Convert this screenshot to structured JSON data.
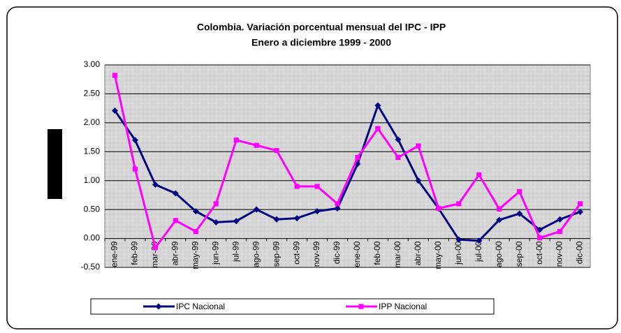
{
  "chart_data": {
    "type": "line",
    "title": "Colombia. Variación porcentual mensual del IPC - IPP",
    "subtitle": "Enero a diciembre 1999 - 2000",
    "categories": [
      "ene-99",
      "feb-99",
      "mar-99",
      "abr-99",
      "may-99",
      "jun-99",
      "jul-99",
      "ago-99",
      "sep-99",
      "oct-99",
      "nov-99",
      "dic-99",
      "ene-00",
      "feb-00",
      "mar-00",
      "abr-00",
      "may-00",
      "jun-00",
      "jul-00",
      "ago-00",
      "sep-00",
      "oct-00",
      "nov-00",
      "dic-00"
    ],
    "series": [
      {
        "name": "IPC Nacional",
        "color": "#000080",
        "marker": "diamond",
        "values": [
          2.21,
          1.7,
          0.93,
          0.78,
          0.47,
          0.28,
          0.3,
          0.5,
          0.33,
          0.35,
          0.47,
          0.52,
          1.29,
          2.3,
          1.71,
          1.0,
          0.52,
          -0.02,
          -0.04,
          0.32,
          0.43,
          0.15,
          0.33,
          0.46
        ]
      },
      {
        "name": "IPP Nacional",
        "color": "#ff00ff",
        "marker": "square",
        "values": [
          2.82,
          1.2,
          -0.16,
          0.31,
          0.12,
          0.6,
          1.7,
          1.61,
          1.52,
          0.9,
          0.9,
          0.6,
          1.4,
          1.9,
          1.4,
          1.6,
          0.52,
          0.6,
          1.1,
          0.51,
          0.81,
          0.01,
          0.12,
          0.6
        ]
      }
    ],
    "ylim": [
      -0.5,
      3
    ],
    "yticks": [
      {
        "value": -0.5,
        "label": "-0.50"
      },
      {
        "value": 0,
        "label": "0.00"
      },
      {
        "value": 0.5,
        "label": "0.50"
      },
      {
        "value": 1,
        "label": "1.00"
      },
      {
        "value": 1.5,
        "label": "1.50"
      },
      {
        "value": 2,
        "label": "2.00"
      },
      {
        "value": 2.5,
        "label": "2.50"
      },
      {
        "value": 3,
        "label": "3.00"
      }
    ],
    "grid": true,
    "legend": "bottom"
  }
}
